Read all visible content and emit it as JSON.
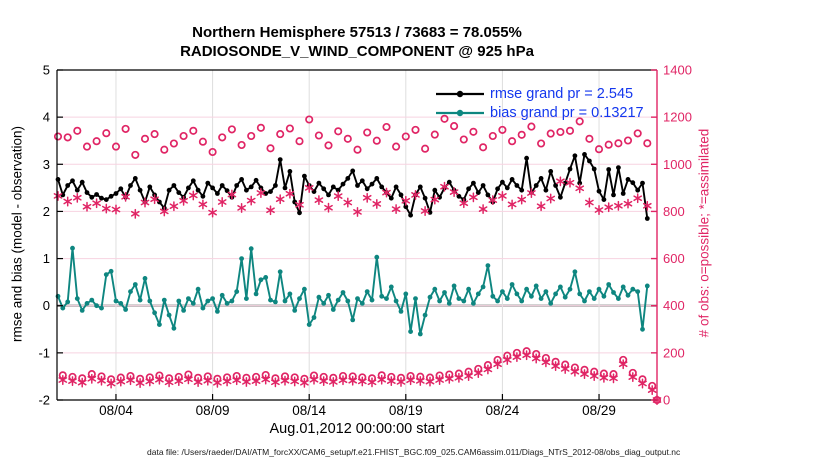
{
  "header": {
    "title_line1": "Northern Hemisphere 57513 / 73683 = 78.055%",
    "title_line2": "RADIOSONDE_V_WIND_COMPONENT @ 925 hPa"
  },
  "legend": {
    "items": [
      {
        "label": "rmse grand pr = 2.545",
        "series": "rmse"
      },
      {
        "label": "bias grand pr = 0.13217",
        "series": "bias"
      }
    ]
  },
  "axes": {
    "left": {
      "label": "rmse and bias (model - observation)",
      "ticks": [
        -2,
        -1,
        0,
        1,
        2,
        3,
        4,
        5
      ],
      "range": [
        -2,
        5
      ]
    },
    "right": {
      "label": "# of obs: o=possible; *=assimilated",
      "ticks": [
        0,
        200,
        400,
        600,
        800,
        1000,
        1200,
        1400
      ],
      "range": [
        0,
        1400
      ]
    },
    "x": {
      "label": "Aug.01,2012 00:00:00 start",
      "tick_labels": [
        "08/04",
        "08/09",
        "08/14",
        "08/19",
        "08/24",
        "08/29"
      ],
      "tick_days": [
        3,
        8,
        13,
        18,
        23,
        28
      ],
      "range_days": [
        0,
        31
      ]
    }
  },
  "footer": {
    "caption": "data file: /Users/raeder/DAI/ATM_forcXX/CAM6_setup/f.e21.FHIST_BGC.f09_025.CAM6assim.011/Diags_NTrS_2012-08/obs_diag_output.nc"
  },
  "colors": {
    "rmse": "#000000",
    "bias": "#0E8680",
    "obs_pink": "#E02565",
    "legend_text": "#1437EE",
    "grid_pink": "#F7D3E1",
    "grid_gray": "#DEDEDE",
    "zero_line": "#B8B8B8"
  },
  "chart_data": {
    "type": "line+scatter",
    "x_unit": "days since Aug 1, 2012 00:00:00",
    "x_step_hours": 6,
    "x_start_day": 0,
    "x_end_day": 31,
    "series": [
      {
        "name": "rmse",
        "axis": "left",
        "style": "line-dot",
        "color": "#000000",
        "grand_value": 2.545,
        "values": [
          2.68,
          2.35,
          2.55,
          2.65,
          2.45,
          2.62,
          2.4,
          2.3,
          2.36,
          2.28,
          2.25,
          2.32,
          2.38,
          2.48,
          2.3,
          2.55,
          2.7,
          2.45,
          2.2,
          2.52,
          2.35,
          2.2,
          2.07,
          2.45,
          2.55,
          2.4,
          2.3,
          2.5,
          2.65,
          2.45,
          2.32,
          2.6,
          2.5,
          2.38,
          2.55,
          2.44,
          2.3,
          2.55,
          2.68,
          2.45,
          2.52,
          2.66,
          2.5,
          2.38,
          2.42,
          2.55,
          3.1,
          2.5,
          2.85,
          2.2,
          1.97,
          2.75,
          2.55,
          2.42,
          2.6,
          2.48,
          2.35,
          2.52,
          2.45,
          2.58,
          2.7,
          2.86,
          2.55,
          2.65,
          2.48,
          2.58,
          2.7,
          2.52,
          2.4,
          2.28,
          2.52,
          2.35,
          2.1,
          1.92,
          2.35,
          2.52,
          2.28,
          1.98,
          2.45,
          2.3,
          2.5,
          2.62,
          2.45,
          2.32,
          2.25,
          2.48,
          2.6,
          2.4,
          2.55,
          2.35,
          2.2,
          2.48,
          2.62,
          2.5,
          2.68,
          2.55,
          2.45,
          3.13,
          2.4,
          2.55,
          2.7,
          2.45,
          2.85,
          2.55,
          2.3,
          2.6,
          2.9,
          3.18,
          2.6,
          3.21,
          3.07,
          2.9,
          2.43,
          2.25,
          2.89,
          2.35,
          2.93,
          2.38,
          2.68,
          2.61,
          2.45,
          2.6,
          1.85,
          null,
          null
        ]
      },
      {
        "name": "bias",
        "axis": "left",
        "style": "line-dot",
        "color": "#0E8680",
        "grand_value": 0.13217,
        "values": [
          0.2,
          -0.05,
          0.08,
          1.22,
          0.15,
          -0.1,
          0.05,
          0.12,
          0.0,
          -0.05,
          0.66,
          0.73,
          0.1,
          0.05,
          -0.08,
          0.3,
          0.45,
          0.12,
          0.58,
          0.1,
          -0.15,
          -0.4,
          0.12,
          -0.2,
          -0.48,
          0.1,
          -0.1,
          0.15,
          0.05,
          0.35,
          -0.05,
          0.1,
          0.15,
          -0.12,
          0.22,
          0.05,
          0.1,
          0.3,
          1.0,
          0.15,
          1.21,
          0.25,
          0.55,
          0.6,
          0.12,
          0.08,
          0.72,
          0.1,
          0.25,
          -0.1,
          0.15,
          0.35,
          -0.4,
          -0.25,
          0.18,
          0.05,
          0.22,
          -0.08,
          0.12,
          0.28,
          0.1,
          -0.3,
          0.15,
          0.05,
          0.3,
          0.12,
          1.03,
          0.2,
          0.15,
          0.4,
          0.1,
          -0.12,
          0.25,
          -0.55,
          0.15,
          -0.6,
          -0.2,
          0.18,
          0.35,
          0.1,
          0.28,
          0.05,
          0.42,
          0.15,
          0.1,
          0.35,
          0.05,
          0.25,
          0.4,
          0.85,
          0.2,
          0.1,
          0.3,
          0.15,
          0.45,
          0.25,
          0.1,
          0.35,
          0.2,
          0.42,
          0.15,
          0.3,
          0.05,
          0.25,
          0.4,
          0.18,
          0.35,
          0.72,
          0.25,
          0.1,
          0.3,
          0.15,
          0.35,
          0.2,
          0.45,
          0.28,
          0.15,
          0.4,
          0.22,
          0.35,
          0.3,
          -0.5,
          0.42,
          null,
          null
        ]
      },
      {
        "name": "possible",
        "axis": "right",
        "style": "scatter-circle",
        "color": "#E02565",
        "values": [
          1118,
          105,
          1114,
          98,
          1142,
          92,
          1075,
          110,
          1098,
          100,
          1132,
          88,
          1075,
          95,
          1150,
          102,
          1040,
          90,
          1108,
          96,
          1128,
          104,
          1062,
          92,
          1088,
          98,
          1120,
          108,
          1142,
          94,
          1096,
          100,
          1052,
          90,
          1114,
          96,
          1148,
          102,
          1082,
          94,
          1120,
          98,
          1155,
          106,
          1068,
          92,
          1128,
          100,
          1152,
          96,
          1098,
          90,
          1190,
          104,
          1122,
          98,
          1080,
          94,
          1140,
          102,
          1108,
          100,
          1062,
          96,
          1135,
          92,
          1100,
          105,
          1158,
          98,
          1075,
          94,
          1118,
          102,
          1146,
          99,
          1066,
          95,
          1126,
          104,
          1193,
          108,
          1162,
          112,
          1105,
          120,
          1138,
          132,
          1072,
          148,
          1120,
          170,
          1146,
          188,
          1098,
          200,
          1125,
          207,
          1160,
          195,
          1088,
          178,
          1130,
          162,
          1137,
          150,
          1142,
          138,
          1182,
          128,
          1108,
          120,
          1064,
          112,
          1083,
          110,
          1089,
          170,
          1101,
          115,
          1131,
          88,
          1089,
          60,
          0
        ]
      },
      {
        "name": "assimilated",
        "axis": "right",
        "style": "scatter-asterisk",
        "color": "#E02565",
        "values": [
          866,
          85,
          842,
          80,
          858,
          74,
          820,
          90,
          835,
          82,
          812,
          70,
          808,
          78,
          862,
          84,
          790,
          72,
          838,
          79,
          852,
          86,
          800,
          75,
          822,
          80,
          845,
          88,
          868,
          76,
          830,
          82,
          795,
          73,
          840,
          79,
          872,
          84,
          815,
          77,
          846,
          80,
          878,
          87,
          805,
          75,
          852,
          82,
          875,
          79,
          828,
          73,
          900,
          86,
          848,
          80,
          816,
          77,
          865,
          84,
          838,
          82,
          798,
          79,
          858,
          75,
          832,
          86,
          880,
          80,
          810,
          77,
          845,
          84,
          870,
          81,
          802,
          78,
          850,
          85,
          905,
          90,
          882,
          94,
          835,
          102,
          860,
          114,
          810,
          130,
          848,
          152,
          866,
          170,
          830,
          182,
          850,
          190,
          878,
          176,
          822,
          160,
          855,
          144,
          928,
          132,
          922,
          120,
          898,
          110,
          838,
          102,
          806,
          94,
          818,
          92,
          824,
          152,
          833,
          97,
          856,
          70,
          824,
          42,
          0
        ]
      }
    ]
  }
}
